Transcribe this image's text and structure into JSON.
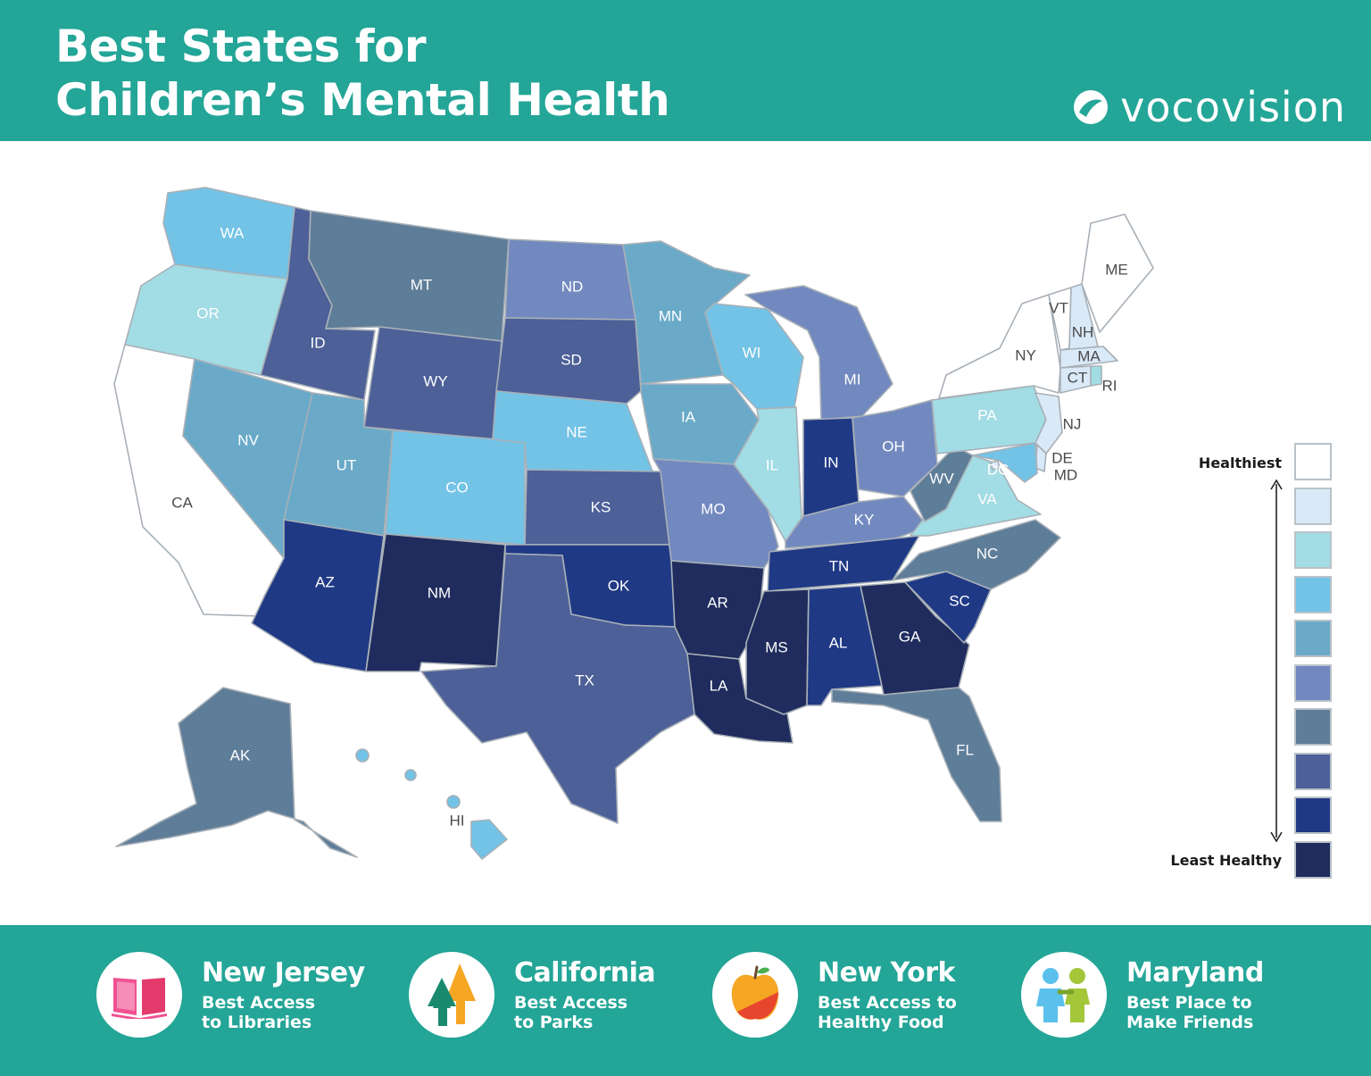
{
  "header": {
    "title_line1": "Best States for",
    "title_line2": "Children’s Mental Health",
    "brand": "vocovision"
  },
  "legend": {
    "top_label": "Healthiest",
    "bottom_label": "Least Healthy",
    "levels": [
      "#ffffff",
      "#d9e9f7",
      "#a2dce4",
      "#72c3e6",
      "#6aaac8",
      "#7289bf",
      "#5e7d99",
      "#4d6098",
      "#1f3985",
      "#1f2c5d"
    ]
  },
  "states": [
    {
      "code": "WA",
      "level": 3
    },
    {
      "code": "OR",
      "level": 2
    },
    {
      "code": "CA",
      "level": 0
    },
    {
      "code": "ID",
      "level": 7
    },
    {
      "code": "NV",
      "level": 4
    },
    {
      "code": "MT",
      "level": 6
    },
    {
      "code": "WY",
      "level": 7
    },
    {
      "code": "UT",
      "level": 4
    },
    {
      "code": "AZ",
      "level": 8
    },
    {
      "code": "CO",
      "level": 3
    },
    {
      "code": "NM",
      "level": 9
    },
    {
      "code": "ND",
      "level": 5
    },
    {
      "code": "SD",
      "level": 7
    },
    {
      "code": "NE",
      "level": 3
    },
    {
      "code": "KS",
      "level": 7
    },
    {
      "code": "OK",
      "level": 8
    },
    {
      "code": "TX",
      "level": 7
    },
    {
      "code": "MN",
      "level": 4
    },
    {
      "code": "IA",
      "level": 4
    },
    {
      "code": "MO",
      "level": 5
    },
    {
      "code": "AR",
      "level": 9
    },
    {
      "code": "LA",
      "level": 9
    },
    {
      "code": "WI",
      "level": 3
    },
    {
      "code": "IL",
      "level": 2
    },
    {
      "code": "MI",
      "level": 5
    },
    {
      "code": "IN",
      "level": 8
    },
    {
      "code": "OH",
      "level": 5
    },
    {
      "code": "KY",
      "level": 5
    },
    {
      "code": "TN",
      "level": 8
    },
    {
      "code": "MS",
      "level": 9
    },
    {
      "code": "AL",
      "level": 8
    },
    {
      "code": "GA",
      "level": 9
    },
    {
      "code": "FL",
      "level": 6
    },
    {
      "code": "SC",
      "level": 8
    },
    {
      "code": "NC",
      "level": 6
    },
    {
      "code": "VA",
      "level": 2
    },
    {
      "code": "WV",
      "level": 6
    },
    {
      "code": "PA",
      "level": 2
    },
    {
      "code": "NY",
      "level": 0
    },
    {
      "code": "VT",
      "level": 0
    },
    {
      "code": "NH",
      "level": 1
    },
    {
      "code": "ME",
      "level": 0
    },
    {
      "code": "MA",
      "level": 1
    },
    {
      "code": "RI",
      "level": 2
    },
    {
      "code": "CT",
      "level": 1
    },
    {
      "code": "NJ",
      "level": 1
    },
    {
      "code": "DE",
      "level": 1
    },
    {
      "code": "MD",
      "level": 3
    },
    {
      "code": "DC",
      "level": 1
    },
    {
      "code": "AK",
      "level": 6
    },
    {
      "code": "HI",
      "level": 3
    }
  ],
  "highlights": [
    {
      "state": "New Jersey",
      "desc_line1": "Best Access",
      "desc_line2": "to Libraries",
      "icon": "book-icon"
    },
    {
      "state": "California",
      "desc_line1": "Best Access",
      "desc_line2": "to Parks",
      "icon": "trees-icon"
    },
    {
      "state": "New York",
      "desc_line1": "Best Access to",
      "desc_line2": "Healthy Food",
      "icon": "apple-icon"
    },
    {
      "state": "Maryland",
      "desc_line1": "Best Place to",
      "desc_line2": "Make Friends",
      "icon": "friends-icon"
    }
  ]
}
